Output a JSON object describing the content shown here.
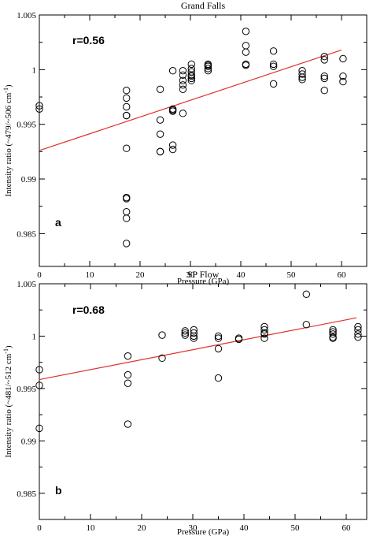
{
  "chart_data": [
    {
      "type": "scatter",
      "title": "Grand Falls",
      "xlabel": "Pressure (GPa)",
      "ylabel": "Intensity ratio (~479/~506 cm",
      "ylabel_sup": "-1",
      "ylabel_close": ")",
      "xlim": [
        0,
        65
      ],
      "ylim": [
        0.982,
        1.005
      ],
      "xticks": [
        0,
        10,
        20,
        30,
        40,
        50,
        60
      ],
      "xtick_labels": [
        "0",
        "10",
        "20",
        "30",
        "40",
        "50",
        "60"
      ],
      "yticks": [
        0.985,
        0.99,
        0.995,
        1.0,
        1.005
      ],
      "ytick_labels": [
        "0.985",
        "0.99",
        "0.995",
        "1",
        "1.005"
      ],
      "annotation_r": "r=0.56",
      "panel_label": "a",
      "marker_color": "#000000",
      "fit_color": "#e03030",
      "fit_line": {
        "x": [
          0,
          60
        ],
        "y": [
          0.9926,
          1.0018
        ]
      },
      "points": {
        "x": [
          0,
          0,
          17.3,
          17.3,
          17.3,
          17.3,
          17.3,
          17.3,
          17.3,
          17.3,
          17.3,
          17.3,
          17.3,
          24,
          24,
          24,
          24,
          24,
          26.5,
          26.5,
          26.5,
          26.5,
          26.5,
          26.5,
          28.5,
          28.5,
          28.5,
          28.5,
          28.5,
          28.5,
          30.2,
          30.2,
          30.2,
          30.2,
          30.2,
          30.2,
          30.2,
          33.5,
          33.5,
          33.5,
          33.5,
          33.5,
          41,
          41,
          41,
          41,
          41,
          46.5,
          46.5,
          46.5,
          46.5,
          52.2,
          52.2,
          52.2,
          52.2,
          56.6,
          56.6,
          56.6,
          56.6,
          56.6,
          60.3,
          60.3,
          60.3
        ],
        "y": [
          0.9967,
          0.9964,
          0.9981,
          0.9974,
          0.9966,
          0.9958,
          0.9928,
          0.9883,
          0.9882,
          0.987,
          0.9864,
          0.9841,
          0.9958,
          0.9982,
          0.9954,
          0.9941,
          0.9925,
          0.9925,
          0.9999,
          0.9964,
          0.9962,
          0.9931,
          0.9927,
          0.9963,
          0.9999,
          0.9995,
          0.999,
          0.9986,
          0.9982,
          0.996,
          1.0005,
          1.0001,
          0.9998,
          0.9995,
          0.9992,
          0.999,
          0.9994,
          1.0005,
          1.0003,
          1.0001,
          0.9999,
          1.0004,
          1.0035,
          1.0022,
          1.0016,
          1.0005,
          1.0004,
          1.0017,
          1.0005,
          1.0003,
          0.9987,
          0.9999,
          0.9996,
          0.9993,
          0.9991,
          1.0012,
          1.0009,
          0.9994,
          0.9992,
          0.9981,
          1.001,
          0.9994,
          0.9989
        ]
      }
    },
    {
      "type": "scatter",
      "title": "SP Flow",
      "xlabel": "Pressure (GPa)",
      "ylabel": "Intensity ratio (~481/~512 cm",
      "ylabel_sup": "-1",
      "ylabel_close": ")",
      "xlim": [
        0,
        64
      ],
      "ylim": [
        0.9825,
        1.005
      ],
      "xticks": [
        0,
        10,
        20,
        30,
        40,
        50,
        60
      ],
      "xtick_labels": [
        "0",
        "10",
        "20",
        "30",
        "40",
        "50",
        "60"
      ],
      "yticks": [
        0.985,
        0.99,
        0.995,
        1.0,
        1.005
      ],
      "ytick_labels": [
        "0.985",
        "0.99",
        "0.995",
        "1",
        "1.005"
      ],
      "annotation_r": "r=0.68",
      "panel_label": "b",
      "marker_color": "#000000",
      "fit_color": "#e03030",
      "fit_line": {
        "x": [
          0,
          62
        ],
        "y": [
          0.99585,
          1.00175
        ]
      },
      "points": {
        "x": [
          0,
          0,
          0,
          17.3,
          17.3,
          17.3,
          17.3,
          24,
          24,
          28.5,
          28.5,
          28.5,
          30.2,
          30.2,
          30.2,
          30.2,
          35,
          35,
          35,
          35,
          39,
          39,
          44,
          44,
          44,
          44,
          44,
          52.2,
          52.2,
          57.4,
          57.4,
          57.4,
          57.4,
          57.4,
          62.3,
          62.3,
          62.3,
          62.3
        ],
        "y": [
          0.9968,
          0.9953,
          0.9912,
          0.9981,
          0.9963,
          0.9955,
          0.9916,
          1.0001,
          0.9979,
          1.0005,
          1.0003,
          1.0001,
          1.0006,
          1.0003,
          1.0,
          0.9998,
          1.0,
          0.9998,
          0.9988,
          0.996,
          0.9998,
          0.9997,
          1.0009,
          1.0006,
          1.0003,
          1.0002,
          0.9998,
          1.004,
          1.0011,
          1.0006,
          1.0004,
          1.0002,
          0.9999,
          0.9998,
          1.0009,
          1.0006,
          1.0002,
          0.9999
        ]
      }
    }
  ]
}
